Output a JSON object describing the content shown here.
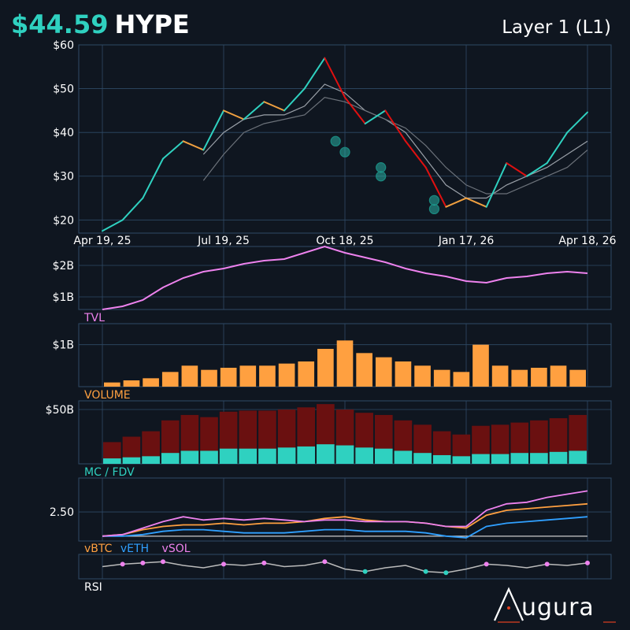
{
  "header": {
    "price": "$44.59",
    "ticker": "HYPE",
    "category": "Layer 1 (L1)"
  },
  "brand": {
    "logo_text": "ugura"
  },
  "colors": {
    "bg": "#0f1620",
    "grid": "#2f4a66",
    "up": "#2fd1c0",
    "mid": "#f0a040",
    "down": "#e01010",
    "tvl": "#ee82ee",
    "volume": "#ffa040",
    "mc": "#2fd1c0",
    "fdv": "#6a1010",
    "vbtc": "#ffa040",
    "veth": "#30a0ff",
    "vsol": "#ee82ee",
    "rsi": "#bbbbbb"
  },
  "chart_data": [
    {
      "type": "line",
      "panel": "price",
      "x_ticks": [
        "Apr 19, 25",
        "Jul 19, 25",
        "Oct 18, 25",
        "Jan 17, 26",
        "Apr 18, 26"
      ],
      "y_ticks": [
        "$60",
        "$50",
        "$40",
        "$30",
        "$20"
      ],
      "ylim": [
        17,
        60
      ],
      "x": [
        "Apr 19, 25",
        "May 4, 25",
        "May 19, 25",
        "Jun 3, 25",
        "Jun 18, 25",
        "Jul 3, 25",
        "Jul 19, 25",
        "Aug 3, 25",
        "Aug 18, 25",
        "Sep 2, 25",
        "Sep 17, 25",
        "Oct 2, 25",
        "Oct 18, 25",
        "Nov 2, 25",
        "Nov 17, 25",
        "Dec 2, 25",
        "Dec 17, 25",
        "Jan 1, 26",
        "Jan 17, 26",
        "Feb 1, 26",
        "Feb 16, 26",
        "Mar 3, 26",
        "Mar 18, 26",
        "Apr 2, 26",
        "Apr 18, 26"
      ],
      "series": [
        {
          "values": [
            17.5,
            20,
            25,
            34,
            38,
            36,
            45,
            43,
            47,
            45,
            50,
            57,
            48,
            42,
            45,
            38,
            32,
            23,
            25,
            23,
            33,
            30,
            33,
            40,
            44.6
          ]
        },
        {
          "values": [
            null,
            null,
            null,
            null,
            null,
            35,
            40,
            43,
            44,
            44,
            46,
            51,
            49,
            45,
            43,
            40,
            34,
            28,
            25,
            25,
            28,
            30,
            32,
            35,
            38
          ]
        },
        {
          "values": [
            null,
            null,
            null,
            null,
            null,
            29,
            35,
            40,
            42,
            43,
            44,
            48,
            47,
            45,
            43,
            41,
            37,
            32,
            28,
            26,
            26,
            28,
            30,
            32,
            36
          ]
        }
      ],
      "markers": [
        {
          "x": "Oct 11, 25",
          "y": 38
        },
        {
          "x": "Oct 18, 25",
          "y": 35.5
        },
        {
          "x": "Nov 14, 25",
          "y": 32
        },
        {
          "x": "Nov 14, 25",
          "y": 30
        },
        {
          "x": "Dec 24, 25",
          "y": 24.5
        },
        {
          "x": "Dec 24, 25",
          "y": 22.5
        }
      ]
    },
    {
      "type": "line",
      "panel": "tvl",
      "y_ticks": [
        "$2B",
        "$1B"
      ],
      "ylim": [
        0.6,
        2.6
      ],
      "series": [
        {
          "name": "TVL",
          "values": [
            0.6,
            0.7,
            0.9,
            1.3,
            1.6,
            1.8,
            1.9,
            2.05,
            2.15,
            2.2,
            2.4,
            2.6,
            2.4,
            2.25,
            2.1,
            1.9,
            1.75,
            1.65,
            1.5,
            1.45,
            1.6,
            1.65,
            1.75,
            1.8,
            1.75
          ]
        }
      ]
    },
    {
      "type": "bar",
      "panel": "volume",
      "y_ticks": [
        "$1B"
      ],
      "ylim": [
        0,
        1.5
      ],
      "series": [
        {
          "name": "VOLUME",
          "values": [
            0.1,
            0.15,
            0.2,
            0.35,
            0.5,
            0.4,
            0.45,
            0.5,
            0.5,
            0.55,
            0.6,
            0.9,
            1.1,
            0.8,
            0.7,
            0.6,
            0.5,
            0.4,
            0.35,
            1.0,
            0.5,
            0.4,
            0.45,
            0.5,
            0.4
          ]
        }
      ]
    },
    {
      "type": "bar",
      "panel": "mc_fdv",
      "y_ticks": [
        "$50B"
      ],
      "ylim": [
        0,
        58
      ],
      "series": [
        {
          "name": "MC",
          "values": [
            5,
            6,
            7,
            10,
            12,
            12,
            14,
            14,
            14,
            15,
            16,
            18,
            17,
            15,
            14,
            12,
            10,
            8,
            7,
            9,
            9,
            10,
            10,
            11,
            12
          ]
        },
        {
          "name": "FDV",
          "values": [
            20,
            25,
            30,
            40,
            45,
            43,
            48,
            49,
            49,
            50,
            52,
            55,
            50,
            47,
            45,
            40,
            36,
            30,
            27,
            35,
            36,
            38,
            40,
            42,
            45
          ]
        }
      ]
    },
    {
      "type": "line",
      "panel": "relative",
      "y_ticks": [
        "2.50"
      ],
      "ylim": [
        0.7,
        4.6
      ],
      "series": [
        {
          "name": "vBTC",
          "values": [
            1,
            1.1,
            1.4,
            1.6,
            1.7,
            1.7,
            1.8,
            1.7,
            1.8,
            1.8,
            1.9,
            2.1,
            2.2,
            2.0,
            1.9,
            1.9,
            1.8,
            1.6,
            1.5,
            2.3,
            2.6,
            2.7,
            2.8,
            2.9,
            3.0
          ]
        },
        {
          "name": "vETH",
          "values": [
            1,
            1,
            1.1,
            1.3,
            1.4,
            1.4,
            1.3,
            1.2,
            1.2,
            1.2,
            1.3,
            1.4,
            1.4,
            1.3,
            1.3,
            1.3,
            1.2,
            1.0,
            0.9,
            1.6,
            1.8,
            1.9,
            2.0,
            2.1,
            2.2
          ]
        },
        {
          "name": "vSOL",
          "values": [
            1,
            1.1,
            1.5,
            1.9,
            2.2,
            2.0,
            2.1,
            2.0,
            2.1,
            2.0,
            1.9,
            2.0,
            2.0,
            1.9,
            1.9,
            1.9,
            1.8,
            1.6,
            1.6,
            2.6,
            3.0,
            3.1,
            3.4,
            3.6,
            3.8
          ]
        }
      ]
    },
    {
      "type": "line",
      "panel": "rsi",
      "ylim": [
        0,
        100
      ],
      "series": [
        {
          "name": "RSI",
          "values": [
            50,
            60,
            65,
            70,
            55,
            45,
            60,
            55,
            65,
            50,
            55,
            70,
            40,
            30,
            45,
            55,
            30,
            25,
            40,
            60,
            55,
            45,
            60,
            55,
            65
          ]
        }
      ]
    }
  ]
}
